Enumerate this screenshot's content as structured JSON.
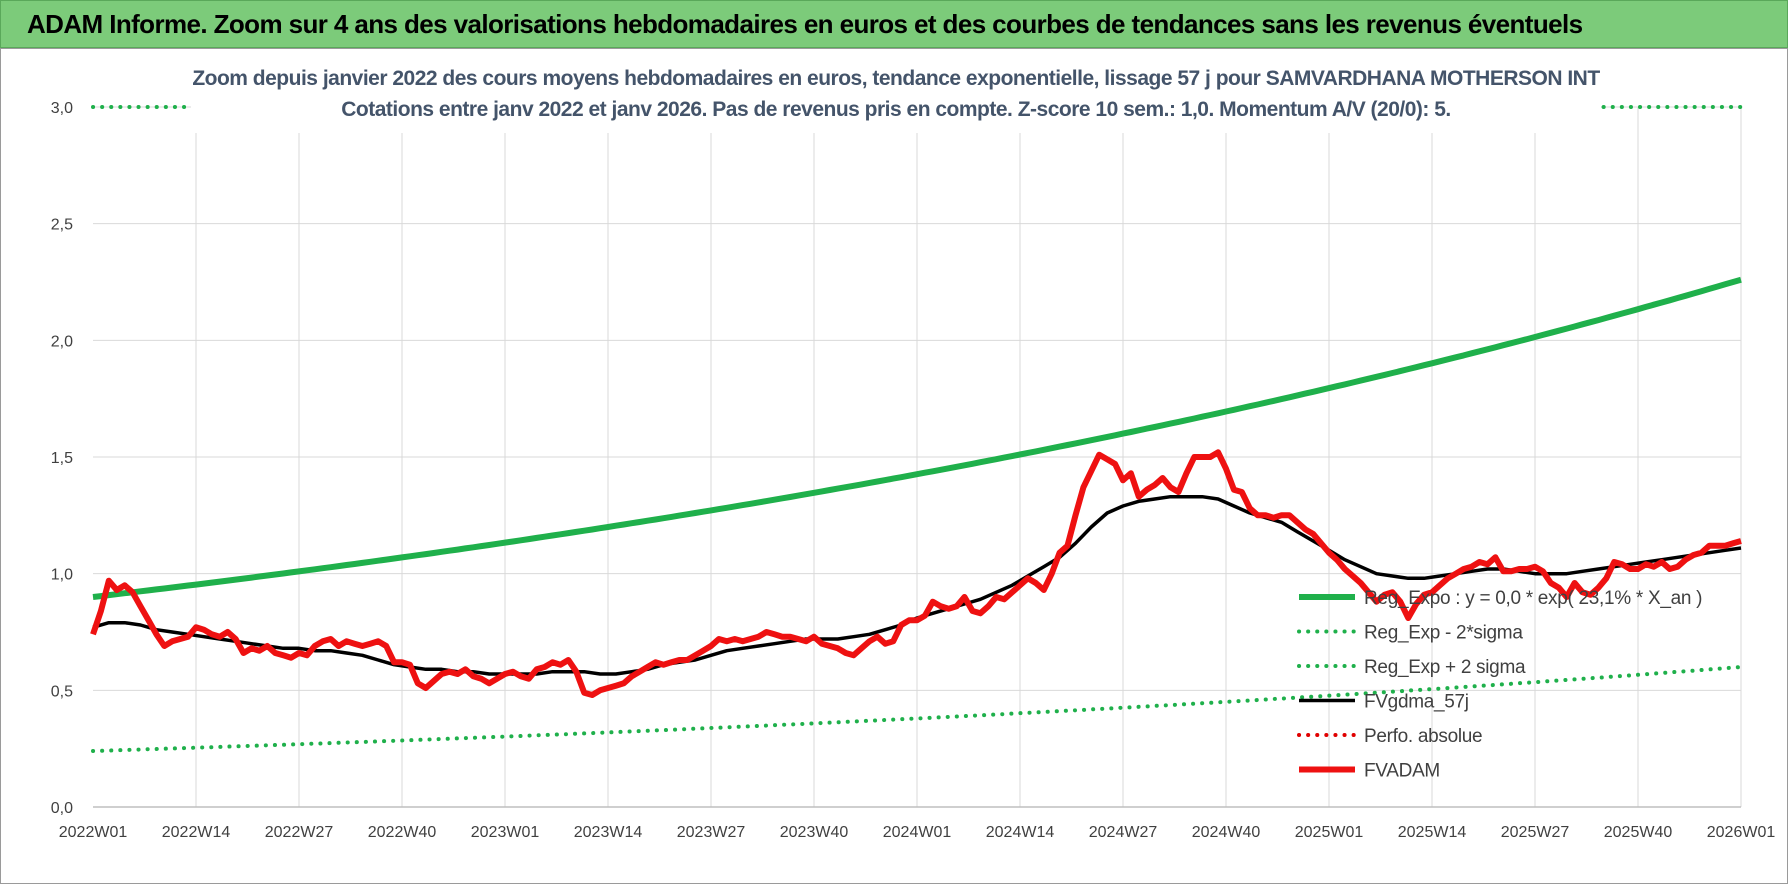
{
  "banner": {
    "title": "ADAM Informe. Zoom sur 4 ans des valorisations hebdomadaires en euros et des courbes de tendances sans les revenus éventuels"
  },
  "chart_data": {
    "type": "line",
    "title_line1": "Zoom depuis janvier 2022 des cours moyens hebdomadaires en euros, tendance exponentielle, lissage 57 j pour SAMVARDHANA MOTHERSON INT",
    "title_line2": "Cotations entre janv 2022 et janv 2026. Pas de revenus pris en compte. Z-score 10 sem.: 1,0. Momentum A/V (20/0): 5.",
    "x_ticks": [
      "2022W01",
      "2022W14",
      "2022W27",
      "2022W40",
      "2023W01",
      "2023W14",
      "2023W27",
      "2023W40",
      "2024W01",
      "2024W14",
      "2024W27",
      "2024W40",
      "2025W01",
      "2025W14",
      "2025W27",
      "2025W40",
      "2026W01"
    ],
    "x_range": [
      0,
      208
    ],
    "ylim": [
      0,
      3
    ],
    "y_ticks": [
      "0,0",
      "0,5",
      "1,0",
      "1,5",
      "2,0",
      "2,5",
      "3,0"
    ],
    "grid": true,
    "legend_position": "right",
    "series": [
      {
        "name": "Reg_Expo : y = 0,0 * exp( 23,1% *  X_an )",
        "color": "#1fb04b",
        "style": "solid",
        "x": [
          0,
          208
        ],
        "y": [
          0.9,
          2.26
        ],
        "curve": "exponential"
      },
      {
        "name": "Reg_Exp - 2*sigma",
        "color": "#1fb04b",
        "style": "dotted",
        "x": [
          0,
          208
        ],
        "y": [
          0.24,
          0.6
        ],
        "curve": "exponential"
      },
      {
        "name": "Reg_Exp + 2 sigma",
        "color": "#1fb04b",
        "style": "dotted",
        "x": [
          0,
          208
        ],
        "y": [
          3.0,
          3.0
        ]
      },
      {
        "name": "FVgdma_57j",
        "color": "#000000",
        "style": "solid",
        "x": [
          0,
          2,
          4,
          6,
          8,
          10,
          12,
          14,
          16,
          18,
          20,
          22,
          24,
          26,
          28,
          30,
          32,
          34,
          36,
          38,
          40,
          42,
          44,
          46,
          48,
          50,
          52,
          54,
          56,
          58,
          60,
          62,
          64,
          66,
          68,
          70,
          72,
          74,
          76,
          78,
          80,
          82,
          84,
          86,
          88,
          90,
          92,
          94,
          96,
          98,
          100,
          102,
          104,
          106,
          108,
          110,
          112,
          114,
          116,
          118,
          120,
          122,
          124,
          126,
          128,
          130,
          132,
          134,
          136,
          138,
          140,
          142,
          144,
          146,
          148,
          150,
          152,
          154,
          156,
          158,
          160,
          162,
          164,
          166,
          168,
          170,
          172,
          174,
          176,
          178,
          180,
          182,
          184,
          186,
          188,
          190,
          192,
          194,
          196,
          198,
          200,
          202,
          204,
          206,
          208
        ],
        "y": [
          0.77,
          0.79,
          0.79,
          0.78,
          0.76,
          0.75,
          0.74,
          0.73,
          0.72,
          0.71,
          0.7,
          0.69,
          0.68,
          0.68,
          0.67,
          0.67,
          0.66,
          0.65,
          0.63,
          0.61,
          0.6,
          0.59,
          0.59,
          0.58,
          0.58,
          0.57,
          0.57,
          0.57,
          0.57,
          0.58,
          0.58,
          0.58,
          0.57,
          0.57,
          0.58,
          0.59,
          0.61,
          0.62,
          0.63,
          0.65,
          0.67,
          0.68,
          0.69,
          0.7,
          0.71,
          0.72,
          0.72,
          0.72,
          0.73,
          0.74,
          0.76,
          0.78,
          0.81,
          0.83,
          0.85,
          0.87,
          0.89,
          0.92,
          0.95,
          0.99,
          1.03,
          1.07,
          1.13,
          1.2,
          1.26,
          1.29,
          1.31,
          1.32,
          1.33,
          1.33,
          1.33,
          1.32,
          1.29,
          1.26,
          1.24,
          1.22,
          1.18,
          1.14,
          1.1,
          1.06,
          1.03,
          1.0,
          0.99,
          0.98,
          0.98,
          0.99,
          1.0,
          1.01,
          1.02,
          1.02,
          1.01,
          1.0,
          1.0,
          1.0,
          1.01,
          1.02,
          1.03,
          1.04,
          1.05,
          1.06,
          1.07,
          1.08,
          1.09,
          1.1,
          1.11
        ]
      },
      {
        "name": "Perfo. absolue",
        "color": "#e00000",
        "style": "dotted",
        "x": [],
        "y": []
      },
      {
        "name": "FVADAM",
        "color": "#ee1111",
        "style": "solid-thick",
        "x": [
          0,
          1,
          2,
          3,
          4,
          5,
          6,
          7,
          8,
          9,
          10,
          11,
          12,
          13,
          14,
          15,
          16,
          17,
          18,
          19,
          20,
          21,
          22,
          23,
          24,
          25,
          26,
          27,
          28,
          29,
          30,
          31,
          32,
          33,
          34,
          35,
          36,
          37,
          38,
          39,
          40,
          41,
          42,
          43,
          44,
          45,
          46,
          47,
          48,
          49,
          50,
          51,
          52,
          53,
          54,
          55,
          56,
          57,
          58,
          59,
          60,
          61,
          62,
          63,
          64,
          65,
          66,
          67,
          68,
          69,
          70,
          71,
          72,
          73,
          74,
          75,
          76,
          77,
          78,
          79,
          80,
          81,
          82,
          83,
          84,
          85,
          86,
          87,
          88,
          89,
          90,
          91,
          92,
          93,
          94,
          95,
          96,
          97,
          98,
          99,
          100,
          101,
          102,
          103,
          104,
          105,
          106,
          107,
          108,
          109,
          110,
          111,
          112,
          113,
          114,
          115,
          116,
          117,
          118,
          119,
          120,
          121,
          122,
          123,
          124,
          125,
          126,
          127,
          128,
          129,
          130,
          131,
          132,
          133,
          134,
          135,
          136,
          137,
          138,
          139,
          140,
          141,
          142,
          143,
          144,
          145,
          146,
          147,
          148,
          149,
          150,
          151,
          152,
          153,
          154,
          155,
          156,
          157,
          158,
          159,
          160,
          161,
          162,
          163,
          164,
          165,
          166,
          167,
          168,
          169,
          170,
          171,
          172,
          173,
          174,
          175,
          176,
          177,
          178,
          179,
          180,
          181,
          182,
          183,
          184,
          185,
          186,
          187,
          188,
          189,
          190,
          191,
          192,
          193,
          194,
          195,
          196,
          197,
          198,
          199,
          200,
          201,
          202,
          203,
          204,
          205,
          206,
          207,
          208
        ],
        "y": [
          0.74,
          0.84,
          0.97,
          0.93,
          0.95,
          0.92,
          0.86,
          0.8,
          0.74,
          0.69,
          0.71,
          0.72,
          0.73,
          0.77,
          0.76,
          0.74,
          0.73,
          0.75,
          0.72,
          0.66,
          0.68,
          0.67,
          0.69,
          0.66,
          0.65,
          0.64,
          0.66,
          0.65,
          0.69,
          0.71,
          0.72,
          0.69,
          0.71,
          0.7,
          0.69,
          0.7,
          0.71,
          0.69,
          0.62,
          0.62,
          0.61,
          0.53,
          0.51,
          0.54,
          0.57,
          0.58,
          0.57,
          0.59,
          0.56,
          0.55,
          0.53,
          0.55,
          0.57,
          0.58,
          0.56,
          0.55,
          0.59,
          0.6,
          0.62,
          0.61,
          0.63,
          0.58,
          0.49,
          0.48,
          0.5,
          0.51,
          0.52,
          0.53,
          0.56,
          0.58,
          0.6,
          0.62,
          0.61,
          0.62,
          0.63,
          0.63,
          0.65,
          0.67,
          0.69,
          0.72,
          0.71,
          0.72,
          0.71,
          0.72,
          0.73,
          0.75,
          0.74,
          0.73,
          0.73,
          0.72,
          0.71,
          0.73,
          0.7,
          0.69,
          0.68,
          0.66,
          0.65,
          0.68,
          0.71,
          0.73,
          0.7,
          0.71,
          0.78,
          0.8,
          0.8,
          0.82,
          0.88,
          0.86,
          0.85,
          0.86,
          0.9,
          0.84,
          0.83,
          0.86,
          0.9,
          0.89,
          0.92,
          0.95,
          0.98,
          0.96,
          0.93,
          1.0,
          1.09,
          1.12,
          1.25,
          1.37,
          1.44,
          1.51,
          1.49,
          1.47,
          1.4,
          1.43,
          1.33,
          1.36,
          1.38,
          1.41,
          1.37,
          1.35,
          1.43,
          1.5,
          1.5,
          1.5,
          1.52,
          1.45,
          1.36,
          1.35,
          1.28,
          1.25,
          1.25,
          1.24,
          1.25,
          1.25,
          1.22,
          1.19,
          1.17,
          1.13,
          1.09,
          1.06,
          1.02,
          0.99,
          0.96,
          0.92,
          0.88,
          0.91,
          0.92,
          0.88,
          0.81,
          0.87,
          0.91,
          0.92,
          0.95,
          0.98,
          1.0,
          1.02,
          1.03,
          1.05,
          1.04,
          1.07,
          1.01,
          1.01,
          1.02,
          1.02,
          1.03,
          1.01,
          0.96,
          0.94,
          0.9,
          0.96,
          0.92,
          0.91,
          0.94,
          0.98,
          1.05,
          1.04,
          1.02,
          1.02,
          1.04,
          1.03,
          1.05,
          1.02,
          1.03,
          1.06,
          1.08,
          1.09,
          1.12,
          1.12,
          1.12,
          1.13,
          1.14
        ]
      }
    ]
  }
}
